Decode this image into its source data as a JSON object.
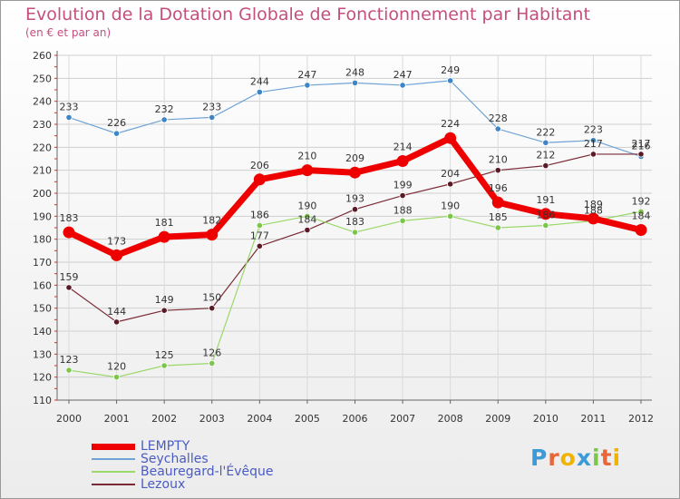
{
  "chart_data": {
    "type": "line",
    "title": "Evolution de la Dotation Globale de Fonctionnement par Habitant",
    "subtitle": "(en € et par an)",
    "categories": [
      "2000",
      "2001",
      "2002",
      "2003",
      "2004",
      "2005",
      "2006",
      "2007",
      "2008",
      "2009",
      "2010",
      "2011",
      "2012"
    ],
    "ylim": [
      110,
      260
    ],
    "yticks": [
      110,
      120,
      130,
      140,
      150,
      160,
      170,
      180,
      190,
      200,
      210,
      220,
      230,
      240,
      250,
      260
    ],
    "grid": true,
    "series": [
      {
        "name": "Seychalles",
        "color": "#6fa3d6",
        "dot": "#3d85c6",
        "width": 1.2,
        "values": [
          233,
          226,
          232,
          233,
          244,
          247,
          248,
          247,
          249,
          228,
          222,
          223,
          216
        ]
      },
      {
        "name": "Lezoux",
        "color": "#7a2a35",
        "dot": "#5a1a25",
        "width": 1.2,
        "values": [
          159,
          144,
          149,
          150,
          177,
          184,
          193,
          199,
          204,
          210,
          212,
          217,
          217
        ]
      },
      {
        "name": "Beauregard-l'Évêque",
        "color": "#9ad86a",
        "dot": "#7cc64a",
        "width": 1.2,
        "values": [
          123,
          120,
          125,
          126,
          186,
          190,
          183,
          188,
          190,
          185,
          186,
          188,
          192
        ]
      },
      {
        "name": "LEMPTY",
        "color": "#ee0000",
        "dot": "#ee0000",
        "width": 7,
        "values": [
          183,
          173,
          181,
          182,
          206,
          210,
          209,
          214,
          224,
          196,
          191,
          189,
          184
        ]
      }
    ]
  },
  "legend": [
    {
      "name": "LEMPTY",
      "color": "#ee0000"
    },
    {
      "name": "Seychalles",
      "color": "#6fa3d6"
    },
    {
      "name": "Beauregard-l'Évêque",
      "color": "#9ad86a"
    },
    {
      "name": "Lezoux",
      "color": "#7a2a35"
    }
  ],
  "logo": {
    "letters": [
      "P",
      "r",
      "o",
      "x",
      "i",
      "t",
      "i"
    ],
    "colors": [
      "#3d9ad8",
      "#e8663a",
      "#f0b400",
      "#3d9ad8",
      "#7cc64a",
      "#e8663a",
      "#f0b400"
    ]
  }
}
